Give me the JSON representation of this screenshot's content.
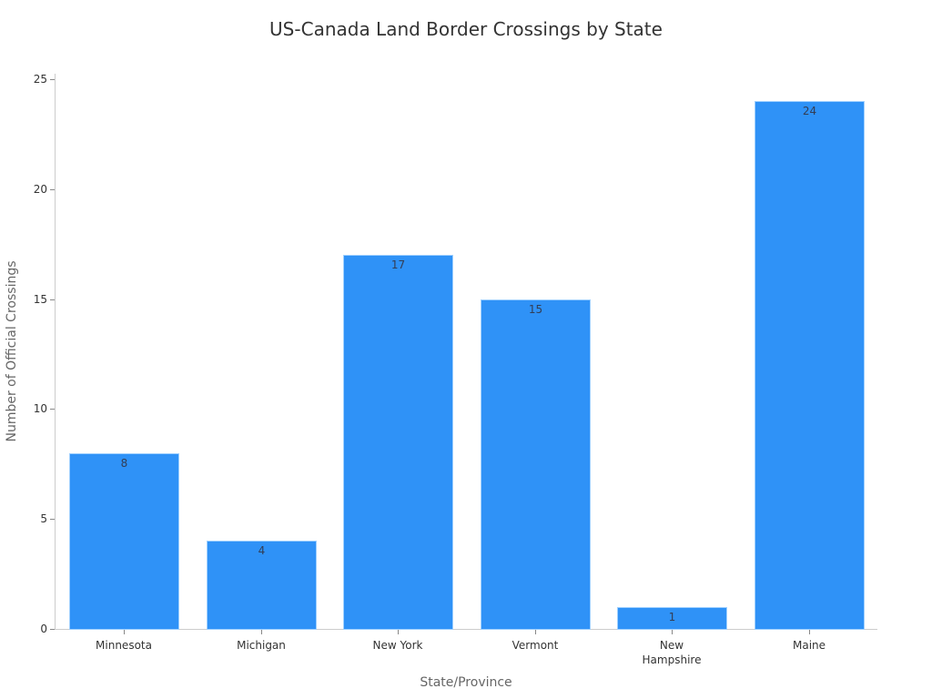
{
  "chart_data": {
    "type": "bar",
    "title": "US-Canada Land Border Crossings by State",
    "xlabel": "State/Province",
    "ylabel": "Number of Official Crossings",
    "categories": [
      "Minnesota",
      "Michigan",
      "New York",
      "Vermont",
      "New Hampshire",
      "Maine"
    ],
    "category_display": [
      [
        "Minnesota"
      ],
      [
        "Michigan"
      ],
      [
        "New York"
      ],
      [
        "Vermont"
      ],
      [
        "New",
        "Hampshire"
      ],
      [
        "Maine"
      ]
    ],
    "values": [
      8,
      4,
      17,
      15,
      1,
      24
    ],
    "ylim": [
      0,
      25
    ],
    "yticks": [
      0,
      5,
      10,
      15,
      20,
      25
    ],
    "grid": false,
    "legend": null,
    "bar_color": "#2f92f7",
    "data_labels": true
  }
}
